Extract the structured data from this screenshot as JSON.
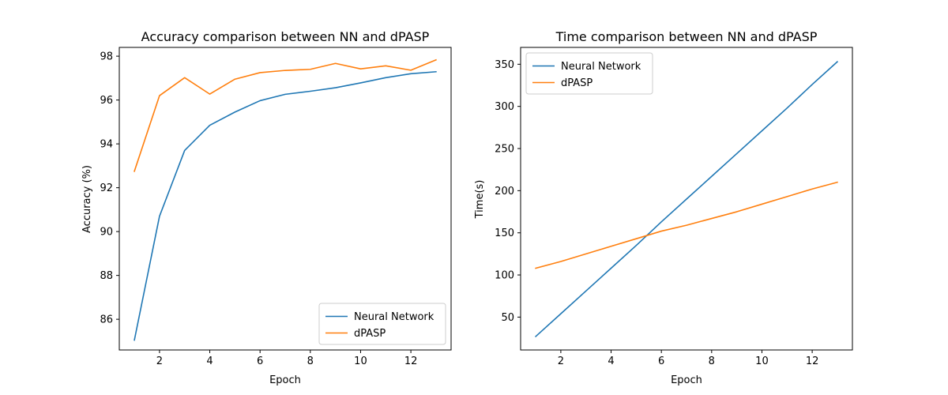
{
  "chart_data": [
    {
      "type": "line",
      "title": "Accuracy comparison between NN and dPASP",
      "xlabel": "Epoch",
      "ylabel": "Accuracy (%)",
      "xlim": [
        0.4,
        13.6
      ],
      "ylim": [
        84.6,
        98.4
      ],
      "xticks": [
        2,
        4,
        6,
        8,
        10,
        12
      ],
      "yticks": [
        86,
        88,
        90,
        92,
        94,
        96,
        98
      ],
      "grid": false,
      "legend_position": "lower-right",
      "x": [
        1,
        2,
        3,
        4,
        5,
        6,
        7,
        8,
        9,
        10,
        11,
        12,
        13
      ],
      "series": [
        {
          "name": "Neural Network",
          "color": "#1f77b4",
          "values": [
            85.05,
            90.7,
            93.7,
            94.85,
            95.45,
            95.97,
            96.26,
            96.4,
            96.56,
            96.78,
            97.02,
            97.2,
            97.29
          ]
        },
        {
          "name": "dPASP",
          "color": "#ff7f0e",
          "values": [
            92.75,
            96.2,
            97.02,
            96.27,
            96.95,
            97.25,
            97.35,
            97.4,
            97.67,
            97.42,
            97.56,
            97.36,
            97.83
          ]
        }
      ]
    },
    {
      "type": "line",
      "title": "Time comparison between NN and dPASP",
      "xlabel": "Epoch",
      "ylabel": "Time(s)",
      "xlim": [
        0.4,
        13.6
      ],
      "ylim": [
        11,
        370
      ],
      "xticks": [
        2,
        4,
        6,
        8,
        10,
        12
      ],
      "yticks": [
        50,
        100,
        150,
        200,
        250,
        300,
        350
      ],
      "grid": false,
      "legend_position": "upper-left",
      "x": [
        1,
        2,
        3,
        4,
        5,
        6,
        7,
        8,
        9,
        10,
        11,
        12,
        13
      ],
      "series": [
        {
          "name": "Neural Network",
          "color": "#1f77b4",
          "values": [
            27,
            54,
            81,
            108,
            135,
            163,
            190,
            217,
            244,
            271,
            298,
            326,
            353
          ]
        },
        {
          "name": "dPASP",
          "color": "#ff7f0e",
          "values": [
            108,
            116,
            125,
            134,
            143,
            152,
            159,
            167,
            175,
            184,
            193,
            202,
            210
          ]
        }
      ]
    }
  ]
}
